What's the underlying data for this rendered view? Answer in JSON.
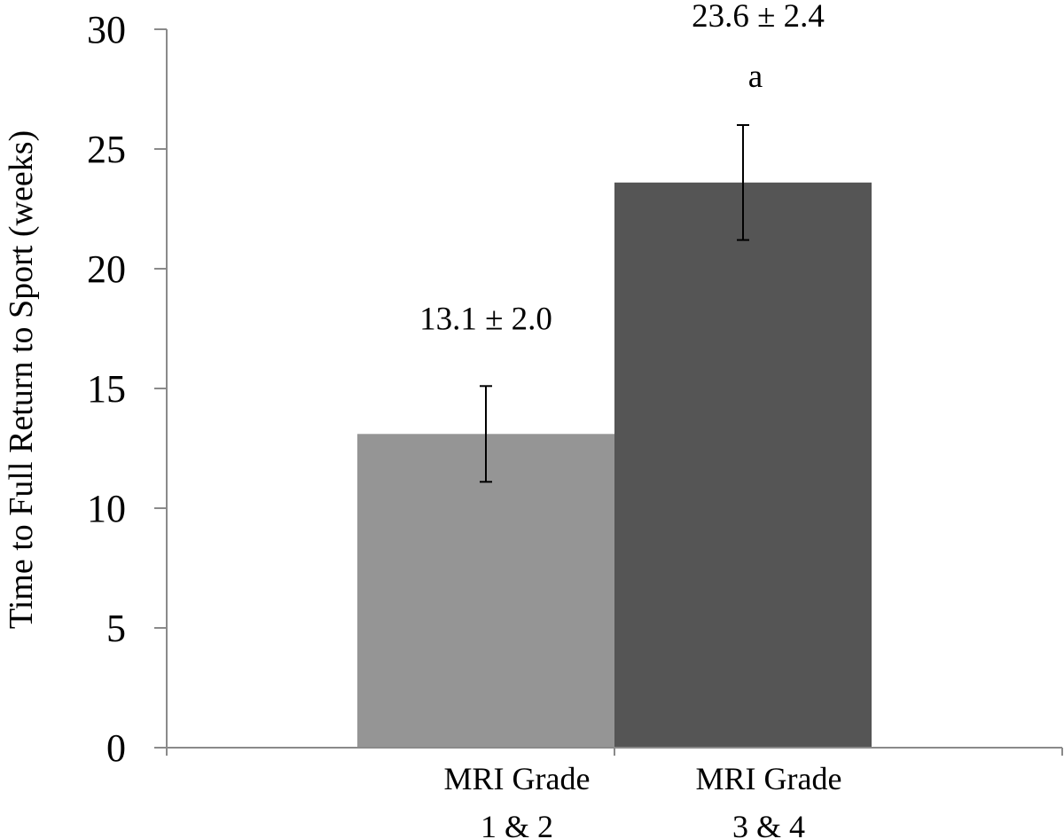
{
  "chart_data": {
    "type": "bar",
    "title": "",
    "xlabel": "",
    "ylabel": "Time to Full Return to Sport (weeks)",
    "ylim": [
      0,
      30
    ],
    "yticks": [
      0,
      5,
      10,
      15,
      20,
      25,
      30
    ],
    "grid": false,
    "categories": [
      {
        "lines": [
          "MRI Grade",
          "1 & 2"
        ]
      },
      {
        "lines": [
          "MRI Grade",
          "3 & 4"
        ]
      }
    ],
    "values": [
      13.1,
      23.6
    ],
    "errors": [
      2.0,
      2.4
    ],
    "data_labels": [
      "13.1 ± 2.0",
      "23.6 ± 2.4"
    ],
    "annotations": [
      "",
      "a"
    ],
    "colors": [
      "#959595",
      "#555555"
    ]
  }
}
